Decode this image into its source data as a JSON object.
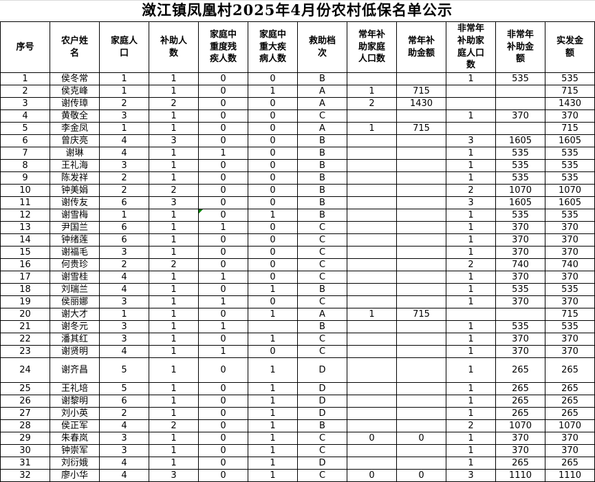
{
  "page": {
    "title": "潋江镇凤凰村2025年4月份农村低保名单公示"
  },
  "table": {
    "columns": [
      "序号",
      "农户姓名",
      "家庭人口",
      "补助人数",
      "家庭中重度残疾人数",
      "家庭中重大疾病人数",
      "救助档次",
      "常年补助家庭人口数",
      "常年补助金额",
      "非常年补助家庭人口数",
      "非常年补助金额",
      "实发金额"
    ],
    "rows": [
      [
        "1",
        "侯冬常",
        "1",
        "1",
        "0",
        "0",
        "B",
        "",
        "",
        "1",
        "535",
        "535"
      ],
      [
        "2",
        "侯克峰",
        "1",
        "1",
        "0",
        "1",
        "A",
        "1",
        "715",
        "",
        "",
        "715"
      ],
      [
        "3",
        "谢传璋",
        "2",
        "2",
        "0",
        "0",
        "A",
        "2",
        "1430",
        "",
        "",
        "1430"
      ],
      [
        "4",
        "黄敬全",
        "3",
        "1",
        "0",
        "0",
        "C",
        "",
        "",
        "1",
        "370",
        "370"
      ],
      [
        "5",
        "李金凤",
        "1",
        "1",
        "0",
        "0",
        "A",
        "1",
        "715",
        "",
        "",
        "715"
      ],
      [
        "6",
        "曾庆亮",
        "4",
        "3",
        "0",
        "0",
        "B",
        "",
        "",
        "3",
        "1605",
        "1605"
      ],
      [
        "7",
        "谢琳",
        "4",
        "1",
        "1",
        "0",
        "B",
        "",
        "",
        "1",
        "535",
        "535"
      ],
      [
        "8",
        "王礼海",
        "3",
        "1",
        "0",
        "0",
        "B",
        "",
        "",
        "1",
        "535",
        "535"
      ],
      [
        "9",
        "陈发祥",
        "2",
        "1",
        "0",
        "0",
        "B",
        "",
        "",
        "1",
        "535",
        "535"
      ],
      [
        "10",
        "钟美娟",
        "2",
        "2",
        "0",
        "0",
        "B",
        "",
        "",
        "2",
        "1070",
        "1070"
      ],
      [
        "11",
        "谢传友",
        "6",
        "3",
        "0",
        "0",
        "B",
        "",
        "",
        "3",
        "1605",
        "1605"
      ],
      [
        "12",
        "谢雪梅",
        "1",
        "1",
        "0",
        "1",
        "B",
        "",
        "",
        "1",
        "535",
        "535"
      ],
      [
        "13",
        "尹国兰",
        "6",
        "1",
        "1",
        "0",
        "C",
        "",
        "",
        "1",
        "370",
        "370"
      ],
      [
        "14",
        "钟绪莲",
        "6",
        "1",
        "0",
        "0",
        "C",
        "",
        "",
        "1",
        "370",
        "370"
      ],
      [
        "15",
        "谢福毛",
        "3",
        "1",
        "0",
        "0",
        "C",
        "",
        "",
        "1",
        "370",
        "370"
      ],
      [
        "16",
        "何贵珍",
        "2",
        "2",
        "0",
        "0",
        "C",
        "",
        "",
        "2",
        "740",
        "740"
      ],
      [
        "17",
        "谢雪桂",
        "4",
        "1",
        "1",
        "0",
        "C",
        "",
        "",
        "1",
        "370",
        "370"
      ],
      [
        "18",
        "刘瑞兰",
        "4",
        "1",
        "0",
        "1",
        "B",
        "",
        "",
        "1",
        "535",
        "535"
      ],
      [
        "19",
        "侯丽娜",
        "3",
        "1",
        "1",
        "0",
        "C",
        "",
        "",
        "1",
        "370",
        "370"
      ],
      [
        "20",
        "谢大才",
        "1",
        "1",
        "0",
        "1",
        "A",
        "1",
        "715",
        "",
        "",
        "715"
      ],
      [
        "21",
        "谢冬元",
        "3",
        "1",
        "1",
        "",
        "B",
        "",
        "",
        "1",
        "535",
        "535"
      ],
      [
        "22",
        "潘其红",
        "3",
        "1",
        "0",
        "1",
        "C",
        "",
        "",
        "1",
        "370",
        "370"
      ],
      [
        "23",
        "谢贤明",
        "4",
        "1",
        "1",
        "0",
        "C",
        "",
        "",
        "1",
        "370",
        "370"
      ],
      [
        "24",
        "谢齐昌",
        "5",
        "1",
        "0",
        "1",
        "D",
        "",
        "",
        "1",
        "265",
        "265"
      ],
      [
        "25",
        "王礼培",
        "5",
        "1",
        "0",
        "1",
        "D",
        "",
        "",
        "1",
        "265",
        "265"
      ],
      [
        "26",
        "谢黎明",
        "6",
        "1",
        "0",
        "1",
        "D",
        "",
        "",
        "1",
        "265",
        "265"
      ],
      [
        "27",
        "刘小英",
        "2",
        "1",
        "0",
        "1",
        "D",
        "",
        "",
        "1",
        "265",
        "265"
      ],
      [
        "28",
        "侯正军",
        "4",
        "2",
        "0",
        "1",
        "B",
        "",
        "",
        "2",
        "1070",
        "1070"
      ],
      [
        "29",
        "朱春岚",
        "3",
        "1",
        "0",
        "1",
        "C",
        "0",
        "0",
        "1",
        "370",
        "370"
      ],
      [
        "30",
        "钟崇军",
        "3",
        "1",
        "0",
        "1",
        "C",
        "",
        "",
        "1",
        "370",
        "370"
      ],
      [
        "31",
        "刘衍娥",
        "4",
        "1",
        "0",
        "1",
        "D",
        "",
        "",
        "1",
        "265",
        "265"
      ],
      [
        "32",
        "廖小华",
        "4",
        "3",
        "0",
        "1",
        "C",
        "0",
        "0",
        "3",
        "1110",
        "1110"
      ]
    ],
    "tall_rows": [
      24
    ],
    "comment_markers": [
      {
        "row": 12,
        "col": 5
      }
    ]
  },
  "colors": {
    "border": "#000000",
    "text": "#000000",
    "background": "#ffffff",
    "comment_marker": "#008000",
    "top_edge_line": "#d9d9d9"
  }
}
